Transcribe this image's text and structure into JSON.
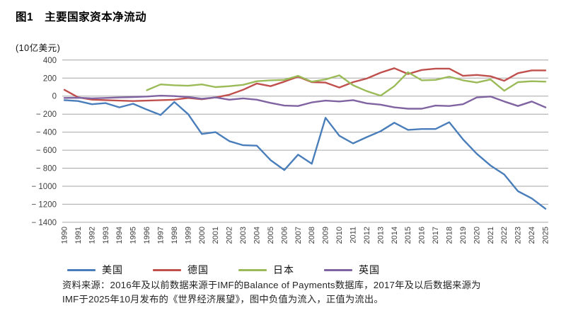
{
  "figure": {
    "title": "图1　主要国家资本净流动",
    "unit_label": "(10亿美元)"
  },
  "source": {
    "line1": "资料来源：2016年及以前数据来源于IMF的Balance of Payments数据库，2017年及以后数据来源为",
    "line2": "IMF于2025年10月发布的《世界经济展望》，图中负值为流入，正值为流出。"
  },
  "chart_data": {
    "type": "line",
    "title": "图1 主要国家资本净流动",
    "ylabel": "10亿美元",
    "xlabel": "",
    "categories": [
      1990,
      1991,
      1992,
      1993,
      1994,
      1995,
      1996,
      1997,
      1998,
      1999,
      2000,
      2001,
      2002,
      2003,
      2004,
      2005,
      2006,
      2007,
      2008,
      2009,
      2010,
      2011,
      2012,
      2013,
      2014,
      2015,
      2016,
      2017,
      2018,
      2019,
      2020,
      2021,
      2022,
      2023,
      2024,
      2025
    ],
    "series": [
      {
        "key": "us",
        "name": "美国",
        "color": "#4a7ebb",
        "values": [
          -45,
          -55,
          -90,
          -78,
          -125,
          -85,
          -150,
          -210,
          -65,
          -200,
          -420,
          -400,
          -500,
          -545,
          -550,
          -710,
          -820,
          -650,
          -750,
          -240,
          -440,
          -525,
          -455,
          -390,
          -295,
          -375,
          -365,
          -365,
          -290,
          -480,
          -640,
          -770,
          -870,
          -1055,
          -1135,
          -1250
        ]
      },
      {
        "key": "germany",
        "name": "德国",
        "color": "#c0504d",
        "values": [
          70,
          -13,
          -39,
          -45,
          -50,
          -55,
          -50,
          -45,
          -40,
          -20,
          -35,
          -15,
          15,
          70,
          140,
          110,
          160,
          215,
          155,
          150,
          95,
          155,
          195,
          260,
          310,
          245,
          290,
          305,
          305,
          225,
          235,
          220,
          170,
          255,
          285,
          285
        ]
      },
      {
        "key": "japan",
        "name": "日本",
        "color": "#9bbb59",
        "values": [
          null,
          null,
          null,
          null,
          null,
          null,
          65,
          130,
          120,
          115,
          130,
          100,
          110,
          125,
          165,
          175,
          180,
          225,
          160,
          185,
          230,
          120,
          55,
          5,
          110,
          265,
          175,
          180,
          215,
          175,
          150,
          185,
          60,
          155,
          165,
          160
        ]
      },
      {
        "key": "uk",
        "name": "英国",
        "color": "#8064a2",
        "values": [
          -20,
          -18,
          -25,
          -20,
          -15,
          -10,
          -5,
          5,
          0,
          -10,
          -30,
          -15,
          -40,
          -25,
          -40,
          -75,
          -105,
          -110,
          -70,
          -50,
          -60,
          -45,
          -80,
          -95,
          -125,
          -140,
          -140,
          -105,
          -110,
          -90,
          -15,
          -5,
          -60,
          -110,
          -60,
          -125
        ]
      }
    ],
    "ylim": [
      -1400,
      400
    ],
    "ytick_step": 200,
    "yticks": [
      {
        "value": 400,
        "label": "400"
      },
      {
        "value": 200,
        "label": "200"
      },
      {
        "value": 0,
        "label": "0"
      },
      {
        "value": -200,
        "label": "− 200"
      },
      {
        "value": -400,
        "label": "− 400"
      },
      {
        "value": -600,
        "label": "− 600"
      },
      {
        "value": -800,
        "label": "− 800"
      },
      {
        "value": -1000,
        "label": "− 1000"
      },
      {
        "value": -1200,
        "label": "− 1200"
      },
      {
        "value": -1400,
        "label": "− 1400"
      }
    ],
    "grid": true,
    "grid_color": "#a6a6a6",
    "axis_label_color": "#3f3f3f",
    "legend_position": "bottom"
  }
}
